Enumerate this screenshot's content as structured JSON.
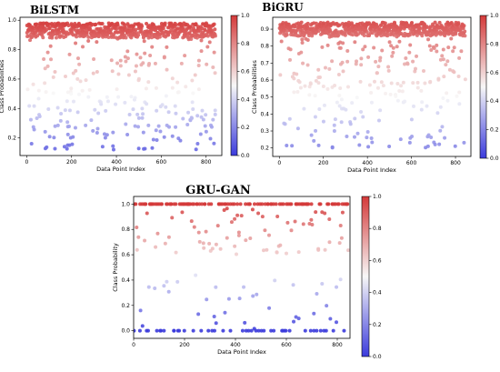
{
  "colorscale": {
    "low": "#3b3bdc",
    "mid": "#f7f7f7",
    "high": "#d43a3a"
  },
  "chart_data": [
    {
      "type": "scatter",
      "title": "BiLSTM",
      "xlabel": "Data Point Index",
      "ylabel": "Class Probabilities",
      "xlim": [
        -30,
        870
      ],
      "ylim": [
        0.08,
        1.02
      ],
      "xticks": [
        0,
        200,
        400,
        600,
        800
      ],
      "yticks": [
        0.2,
        0.4,
        0.6,
        0.8,
        1.0
      ],
      "yticklabels": [
        "0.2",
        "0.4",
        "0.6",
        "0.8",
        "1.0"
      ],
      "colorbar": {
        "min": 0.0,
        "max": 1.0,
        "ticks": [
          0.0,
          0.2,
          0.4,
          0.6,
          0.8,
          1.0
        ],
        "labels": [
          "0.0",
          "0.2",
          "0.4",
          "0.6",
          "0.8",
          "1.0"
        ]
      },
      "grid": false,
      "seed": 11,
      "distribution": {
        "n": 845,
        "dense_range": [
          0.88,
          0.98
        ],
        "dense_frac": 0.72,
        "mid_range": [
          0.4,
          0.88
        ],
        "mid_frac": 0.16,
        "low_range": [
          0.12,
          0.4
        ]
      }
    },
    {
      "type": "scatter",
      "title": "BiGRU",
      "xlabel": "Data Point Index",
      "ylabel": "Class Probabilities",
      "xlim": [
        -30,
        870
      ],
      "ylim": [
        0.15,
        0.97
      ],
      "xticks": [
        0,
        200,
        400,
        600,
        800
      ],
      "yticks": [
        0.2,
        0.3,
        0.4,
        0.5,
        0.6,
        0.7,
        0.8,
        0.9
      ],
      "yticklabels": [
        "0.2",
        "0.3",
        "0.4",
        "0.5",
        "0.6",
        "0.7",
        "0.8",
        "0.9"
      ],
      "colorbar": {
        "min": 0.0,
        "max": 1.0,
        "ticks": [
          0.0,
          0.2,
          0.4,
          0.6,
          0.8,
          1.0
        ],
        "labels": [
          "0.0",
          "0.2",
          "0.4",
          "0.6",
          "0.8",
          "1.0"
        ]
      },
      "grid": false,
      "seed": 23,
      "distribution": {
        "n": 845,
        "dense_range": [
          0.86,
          0.94
        ],
        "dense_frac": 0.74,
        "mid_range": [
          0.55,
          0.86
        ],
        "mid_frac": 0.14,
        "low_range": [
          0.2,
          0.55
        ]
      }
    },
    {
      "type": "scatter",
      "title": "GRU-GAN",
      "xlabel": "Data Point Index",
      "ylabel": "Class Probability",
      "xlim": [
        0,
        850
      ],
      "ylim": [
        -0.06,
        1.06
      ],
      "xticks": [
        0,
        200,
        400,
        600,
        800
      ],
      "yticks": [
        0.0,
        0.2,
        0.4,
        0.6,
        0.8,
        1.0
      ],
      "yticklabels": [
        "0.0",
        "0.2",
        "0.4",
        "0.6",
        "0.8",
        "1.0"
      ],
      "colorbar": {
        "min": 0.0,
        "max": 1.0,
        "ticks": [
          0.0,
          0.2,
          0.4,
          0.6,
          0.8,
          1.0
        ],
        "labels": [
          "0.0",
          "0.2",
          "0.4",
          "0.6",
          "0.8",
          "1.0"
        ]
      },
      "grid": false,
      "seed": 37,
      "distribution": {
        "n": 260,
        "dense_range": [
          1.0,
          1.0
        ],
        "dense_frac": 0.42,
        "mid_range": [
          0.6,
          0.97
        ],
        "mid_frac": 0.24,
        "low_range": [
          0.0,
          0.45
        ],
        "zero_frac": 0.22
      }
    }
  ]
}
